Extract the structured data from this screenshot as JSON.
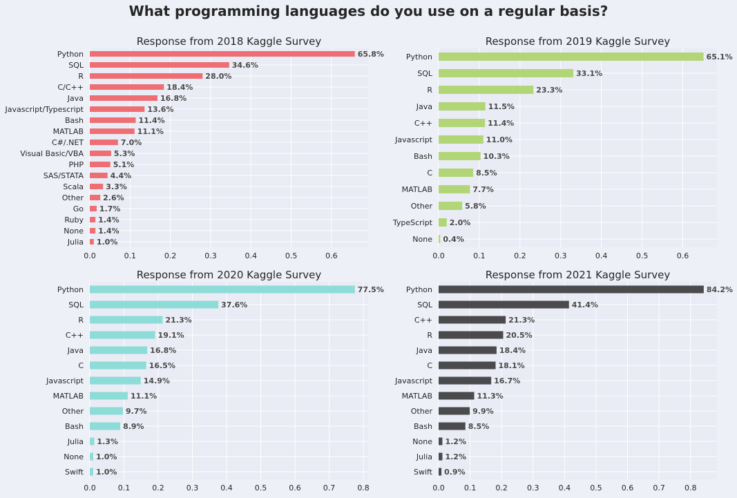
{
  "suptitle": "What programming languages do you use on a regular basis?",
  "chart_data": [
    {
      "type": "bar",
      "orientation": "horizontal",
      "title": "Response from 2018 Kaggle Survey",
      "color": "#ee6e73",
      "categories": [
        "Python",
        "SQL",
        "R",
        "C/C++",
        "Java",
        "Javascript/Typescript",
        "Bash",
        "MATLAB",
        "C#/.NET",
        "Visual Basic/VBA",
        "PHP",
        "SAS/STATA",
        "Scala",
        "Other",
        "Go",
        "Ruby",
        "None",
        "Julia"
      ],
      "values": [
        0.658,
        0.346,
        0.28,
        0.184,
        0.168,
        0.136,
        0.114,
        0.111,
        0.07,
        0.053,
        0.051,
        0.044,
        0.033,
        0.026,
        0.017,
        0.014,
        0.014,
        0.01
      ],
      "labels": [
        "65.8%",
        "34.6%",
        "28.0%",
        "18.4%",
        "16.8%",
        "13.6%",
        "11.4%",
        "11.1%",
        "7.0%",
        "5.3%",
        "5.1%",
        "4.4%",
        "3.3%",
        "2.6%",
        "1.7%",
        "1.4%",
        "1.4%",
        "1.0%"
      ],
      "xlim": [
        0,
        0.691
      ],
      "xticks": [
        "0.0",
        "0.1",
        "0.2",
        "0.3",
        "0.4",
        "0.5",
        "0.6"
      ],
      "grid": true
    },
    {
      "type": "bar",
      "orientation": "horizontal",
      "title": "Response from 2019 Kaggle Survey",
      "color": "#b2d677",
      "categories": [
        "Python",
        "SQL",
        "R",
        "Java",
        "C++",
        "Javascript",
        "Bash",
        "C",
        "MATLAB",
        "Other",
        "TypeScript",
        "None"
      ],
      "values": [
        0.651,
        0.331,
        0.233,
        0.115,
        0.114,
        0.11,
        0.103,
        0.085,
        0.077,
        0.058,
        0.02,
        0.004
      ],
      "labels": [
        "65.1%",
        "33.1%",
        "23.3%",
        "11.5%",
        "11.4%",
        "11.0%",
        "10.3%",
        "8.5%",
        "7.7%",
        "5.8%",
        "2.0%",
        "0.4%"
      ],
      "xlim": [
        0,
        0.684
      ],
      "xticks": [
        "0.0",
        "0.1",
        "0.2",
        "0.3",
        "0.4",
        "0.5",
        "0.6"
      ],
      "grid": true
    },
    {
      "type": "bar",
      "orientation": "horizontal",
      "title": "Response from 2020 Kaggle Survey",
      "color": "#8ddcd8",
      "categories": [
        "Python",
        "SQL",
        "R",
        "C++",
        "Java",
        "C",
        "Javascript",
        "MATLAB",
        "Other",
        "Bash",
        "Julia",
        "None",
        "Swift"
      ],
      "values": [
        0.775,
        0.376,
        0.213,
        0.191,
        0.168,
        0.165,
        0.149,
        0.111,
        0.097,
        0.089,
        0.013,
        0.01,
        0.01
      ],
      "labels": [
        "77.5%",
        "37.6%",
        "21.3%",
        "19.1%",
        "16.8%",
        "16.5%",
        "14.9%",
        "11.1%",
        "9.7%",
        "8.9%",
        "1.3%",
        "1.0%",
        "1.0%"
      ],
      "xlim": [
        0,
        0.814
      ],
      "xticks": [
        "0.0",
        "0.1",
        "0.2",
        "0.3",
        "0.4",
        "0.5",
        "0.6",
        "0.7",
        "0.8"
      ],
      "grid": true
    },
    {
      "type": "bar",
      "orientation": "horizontal",
      "title": "Response from 2021 Kaggle Survey",
      "color": "#4b4b4d",
      "categories": [
        "Python",
        "SQL",
        "C++",
        "R",
        "Java",
        "C",
        "Javascript",
        "MATLAB",
        "Other",
        "Bash",
        "None",
        "Julia",
        "Swift"
      ],
      "values": [
        0.842,
        0.414,
        0.213,
        0.205,
        0.184,
        0.181,
        0.167,
        0.113,
        0.099,
        0.085,
        0.012,
        0.012,
        0.009
      ],
      "labels": [
        "84.2%",
        "41.4%",
        "21.3%",
        "20.5%",
        "18.4%",
        "18.1%",
        "16.7%",
        "11.3%",
        "9.9%",
        "8.5%",
        "1.2%",
        "1.2%",
        "0.9%"
      ],
      "xlim": [
        0,
        0.884
      ],
      "xticks": [
        "0.0",
        "0.1",
        "0.2",
        "0.3",
        "0.4",
        "0.5",
        "0.6",
        "0.7",
        "0.8"
      ],
      "grid": true
    }
  ]
}
